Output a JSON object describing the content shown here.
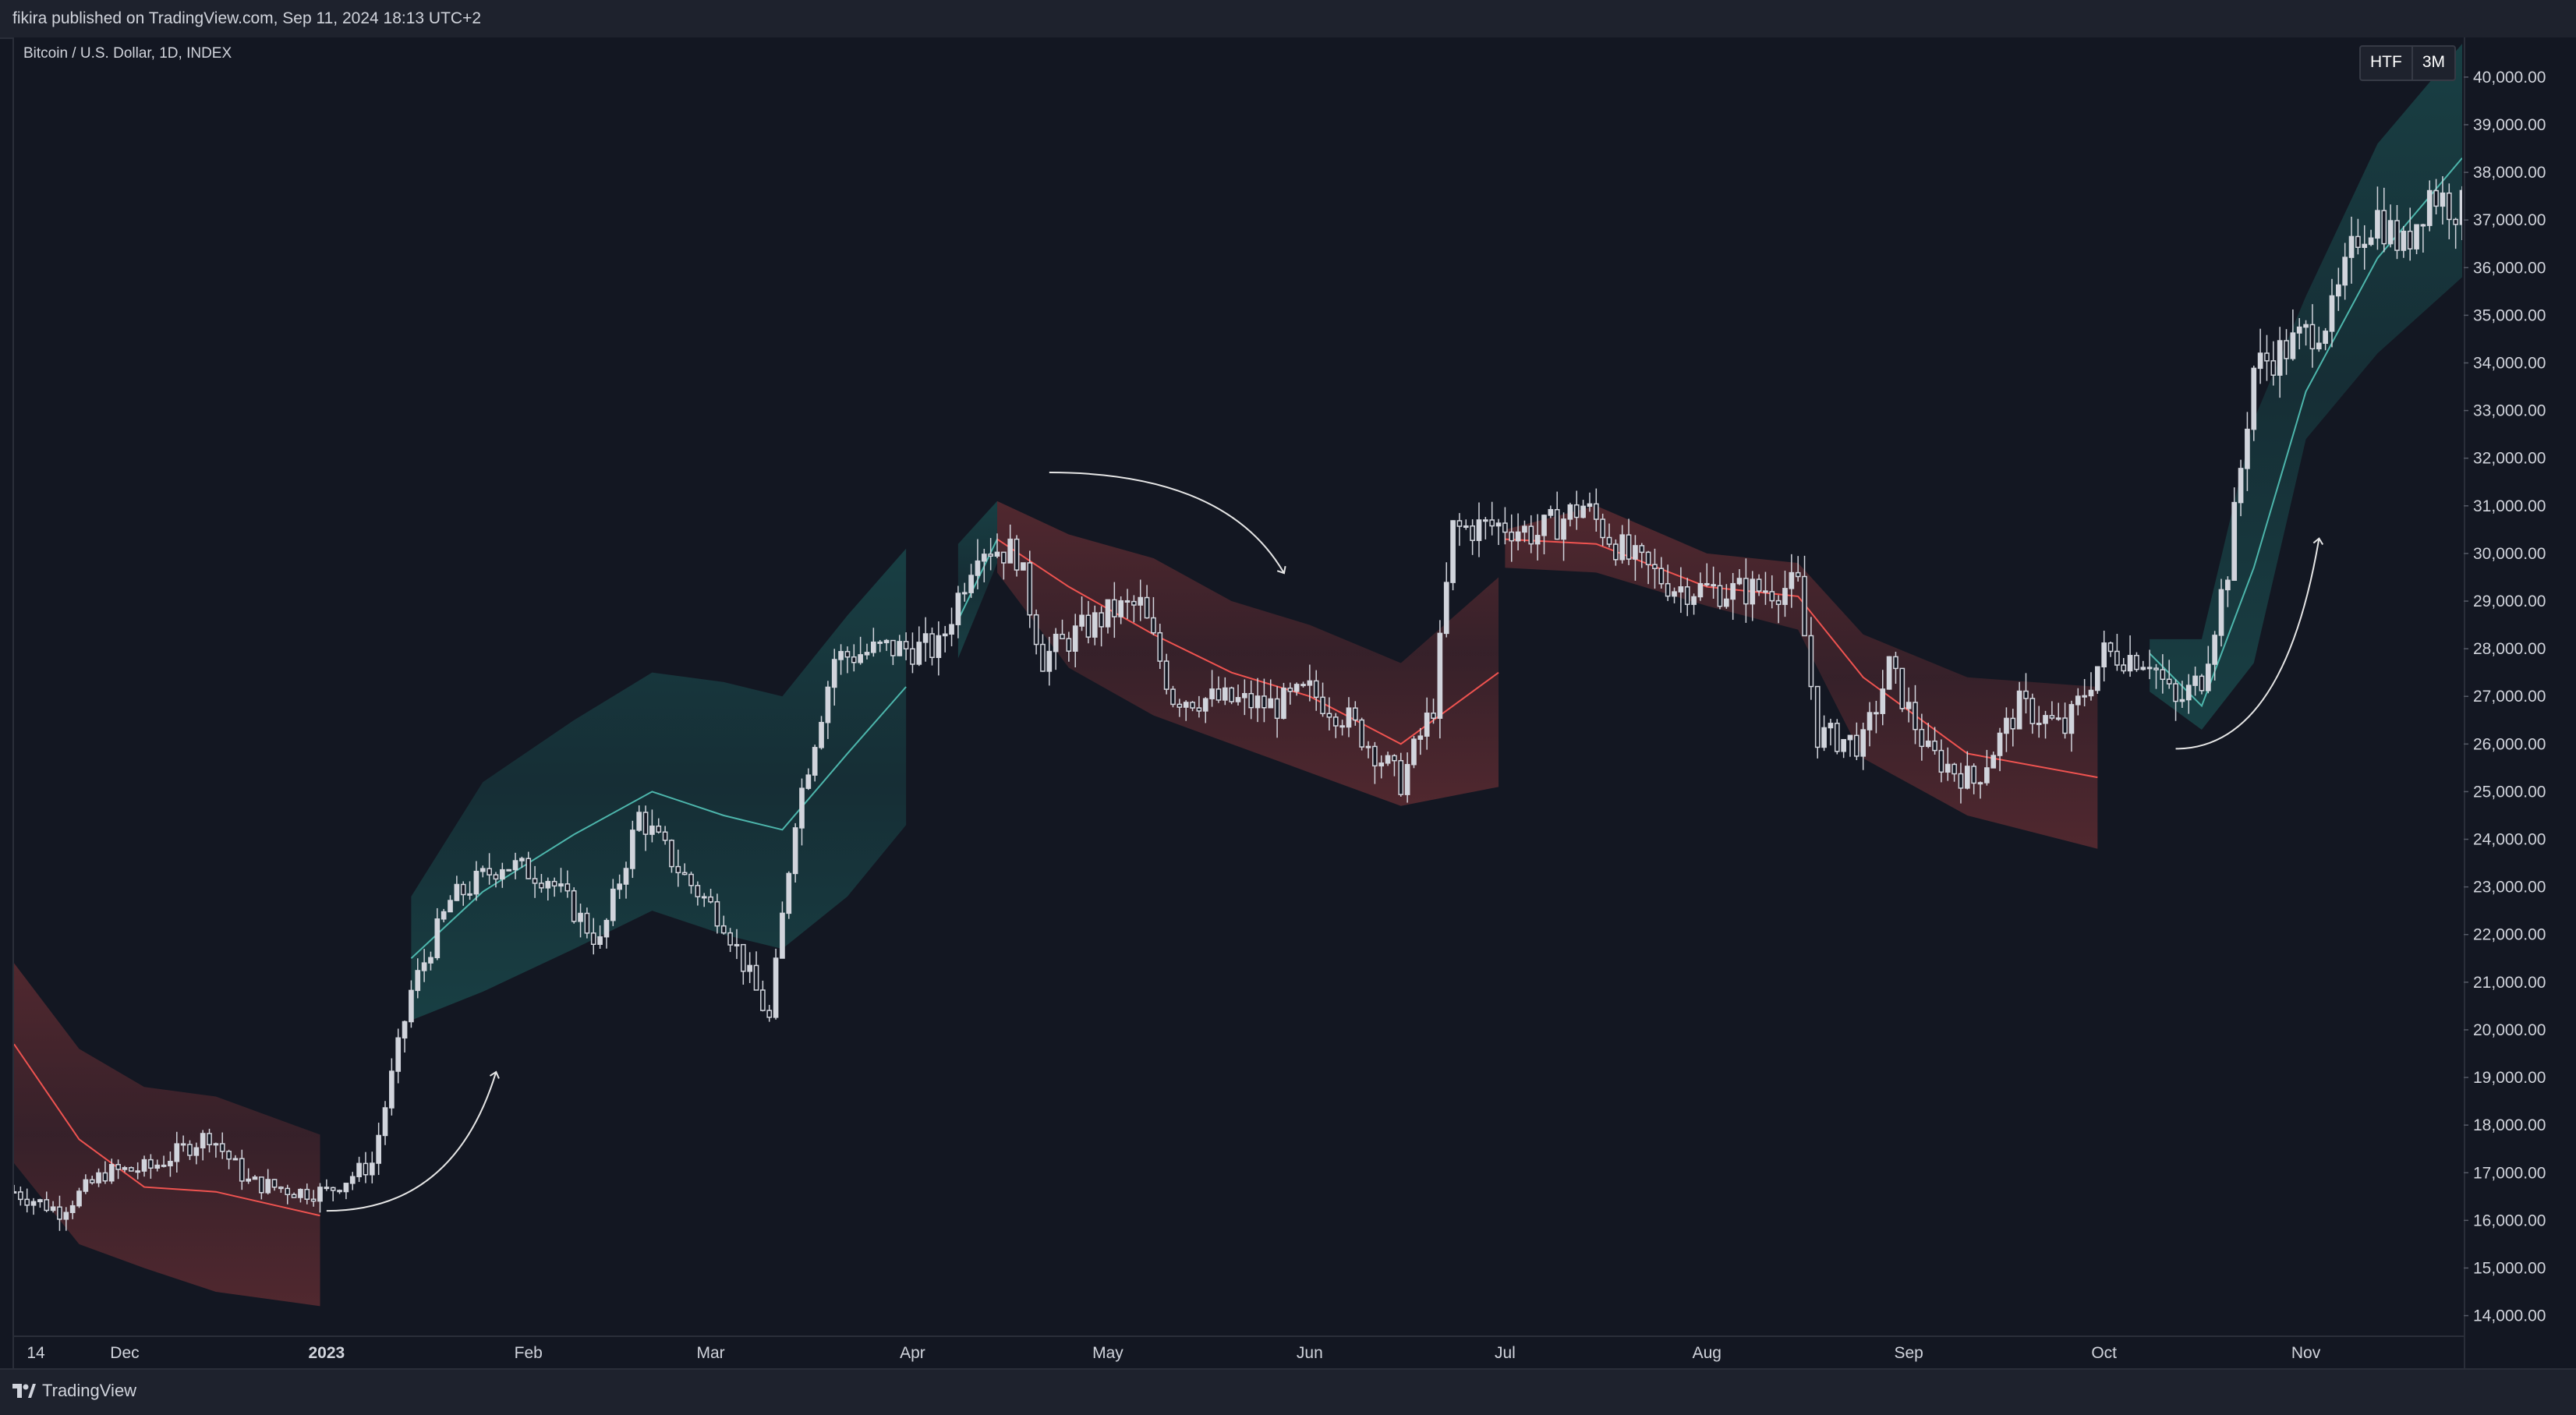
{
  "header": {
    "publisher_text": "fikira published on TradingView.com, Sep 11, 2024 18:13 UTC+2"
  },
  "footer": {
    "brand": "TradingView"
  },
  "symbol": {
    "label": "Bitcoin / U.S. Dollar, 1D, INDEX"
  },
  "timeframe_widget": {
    "label": "HTF",
    "value": "3M"
  },
  "colors": {
    "background": "#131722",
    "panel": "#1e222d",
    "grid": "#2a2e39",
    "axis_text": "#d1d4dc",
    "candle": "#d1d4dc",
    "bull_band": "#26a69a",
    "bear_band": "#ef5350",
    "bull_line": "#4db6ac",
    "bear_line": "#ef5350",
    "arrow": "#e6e6e6"
  },
  "chart_data": {
    "type": "candlestick",
    "title": "",
    "x_axis": {
      "tick_labels": [
        "14",
        "Dec",
        "2023",
        "Feb",
        "Mar",
        "Apr",
        "May",
        "Jun",
        "Jul",
        "Aug",
        "Sep",
        "Oct",
        "Nov"
      ],
      "tick_dates": [
        "2022-11-14",
        "2022-12-01",
        "2023-01-01",
        "2023-02-01",
        "2023-03-01",
        "2023-04-01",
        "2023-05-01",
        "2023-06-01",
        "2023-07-01",
        "2023-08-01",
        "2023-09-01",
        "2023-10-01",
        "2023-11-01"
      ],
      "range": [
        "2022-11-14",
        "2023-11-25"
      ]
    },
    "y_axis": {
      "range": [
        13600,
        40800
      ],
      "tick_labels": [
        "14,000.00",
        "15,000.00",
        "16,000.00",
        "17,000.00",
        "18,000.00",
        "19,000.00",
        "20,000.00",
        "21,000.00",
        "22,000.00",
        "23,000.00",
        "24,000.00",
        "25,000.00",
        "26,000.00",
        "27,000.00",
        "28,000.00",
        "29,000.00",
        "30,000.00",
        "31,000.00",
        "32,000.00",
        "33,000.00",
        "34,000.00",
        "35,000.00",
        "36,000.00",
        "37,000.00",
        "38,000.00",
        "39,000.00",
        "40,000.00"
      ],
      "tick_values": [
        14000,
        15000,
        16000,
        17000,
        18000,
        19000,
        20000,
        21000,
        22000,
        23000,
        24000,
        25000,
        26000,
        27000,
        28000,
        29000,
        30000,
        31000,
        32000,
        33000,
        34000,
        35000,
        36000,
        37000,
        38000,
        39000,
        40000
      ]
    },
    "price_path": [
      [
        "2022-11-14",
        16600
      ],
      [
        "2022-11-21",
        16200
      ],
      [
        "2022-11-28",
        17000
      ],
      [
        "2022-12-05",
        17100
      ],
      [
        "2022-12-14",
        17800
      ],
      [
        "2022-12-20",
        16800
      ],
      [
        "2022-12-28",
        16600
      ],
      [
        "2023-01-01",
        16600
      ],
      [
        "2023-01-08",
        17200
      ],
      [
        "2023-01-14",
        20800
      ],
      [
        "2023-01-20",
        22700
      ],
      [
        "2023-01-28",
        23500
      ],
      [
        "2023-02-04",
        23200
      ],
      [
        "2023-02-12",
        21800
      ],
      [
        "2023-02-18",
        24500
      ],
      [
        "2023-02-25",
        23200
      ],
      [
        "2023-03-03",
        22300
      ],
      [
        "2023-03-10",
        20200
      ],
      [
        "2023-03-14",
        24500
      ],
      [
        "2023-03-20",
        27800
      ],
      [
        "2023-03-28",
        28000
      ],
      [
        "2023-04-05",
        28000
      ],
      [
        "2023-04-11",
        30200
      ],
      [
        "2023-04-17",
        30000
      ],
      [
        "2023-04-21",
        27800
      ],
      [
        "2023-04-26",
        28300
      ],
      [
        "2023-05-02",
        28800
      ],
      [
        "2023-05-06",
        28900
      ],
      [
        "2023-05-11",
        27000
      ],
      [
        "2023-05-20",
        26900
      ],
      [
        "2023-05-27",
        26800
      ],
      [
        "2023-06-01",
        27100
      ],
      [
        "2023-06-07",
        26500
      ],
      [
        "2023-06-15",
        25200
      ],
      [
        "2023-06-20",
        26800
      ],
      [
        "2023-06-23",
        30500
      ],
      [
        "2023-07-01",
        30600
      ],
      [
        "2023-07-06",
        30400
      ],
      [
        "2023-07-13",
        31000
      ],
      [
        "2023-07-20",
        29900
      ],
      [
        "2023-07-27",
        29300
      ],
      [
        "2023-08-05",
        29200
      ],
      [
        "2023-08-15",
        29300
      ],
      [
        "2023-08-18",
        26200
      ],
      [
        "2023-08-25",
        26000
      ],
      [
        "2023-08-29",
        27600
      ],
      [
        "2023-09-04",
        25800
      ],
      [
        "2023-09-11",
        25200
      ],
      [
        "2023-09-18",
        26800
      ],
      [
        "2023-09-25",
        26300
      ],
      [
        "2023-10-01",
        27900
      ],
      [
        "2023-10-08",
        27800
      ],
      [
        "2023-10-12",
        26800
      ],
      [
        "2023-10-16",
        27400
      ],
      [
        "2023-10-20",
        29700
      ],
      [
        "2023-10-24",
        33900
      ],
      [
        "2023-10-29",
        34300
      ],
      [
        "2023-11-05",
        35000
      ],
      [
        "2023-11-09",
        36700
      ],
      [
        "2023-11-12",
        37100
      ],
      [
        "2023-11-16",
        36400
      ],
      [
        "2023-11-20",
        37600
      ],
      [
        "2023-11-25",
        37200
      ]
    ],
    "bands": [
      {
        "trend": "bear",
        "mid": [
          [
            "2022-11-14",
            19700
          ],
          [
            "2022-11-24",
            17700
          ],
          [
            "2022-12-04",
            16700
          ],
          [
            "2022-12-15",
            16600
          ],
          [
            "2022-12-31",
            16100
          ]
        ],
        "upper": [
          [
            "2022-11-14",
            21400
          ],
          [
            "2022-11-24",
            19600
          ],
          [
            "2022-12-04",
            18800
          ],
          [
            "2022-12-15",
            18600
          ],
          [
            "2022-12-31",
            17800
          ]
        ],
        "lower": [
          [
            "2022-11-14",
            17200
          ],
          [
            "2022-11-24",
            15500
          ],
          [
            "2022-12-04",
            15000
          ],
          [
            "2022-12-15",
            14500
          ],
          [
            "2022-12-31",
            14200
          ]
        ]
      },
      {
        "trend": "bull",
        "mid": [
          [
            "2023-01-14",
            21500
          ],
          [
            "2023-01-25",
            22900
          ],
          [
            "2023-02-08",
            24100
          ],
          [
            "2023-02-20",
            25000
          ],
          [
            "2023-03-03",
            24500
          ],
          [
            "2023-03-12",
            24200
          ],
          [
            "2023-03-22",
            25800
          ],
          [
            "2023-03-31",
            27200
          ]
        ],
        "upper": [
          [
            "2023-01-14",
            22800
          ],
          [
            "2023-01-25",
            25200
          ],
          [
            "2023-02-08",
            26500
          ],
          [
            "2023-02-20",
            27500
          ],
          [
            "2023-03-03",
            27300
          ],
          [
            "2023-03-12",
            27000
          ],
          [
            "2023-03-22",
            28700
          ],
          [
            "2023-03-31",
            30100
          ]
        ],
        "lower": [
          [
            "2023-01-14",
            20200
          ],
          [
            "2023-01-25",
            20800
          ],
          [
            "2023-02-08",
            21700
          ],
          [
            "2023-02-20",
            22500
          ],
          [
            "2023-03-03",
            22000
          ],
          [
            "2023-03-12",
            21700
          ],
          [
            "2023-03-22",
            22800
          ],
          [
            "2023-03-31",
            24300
          ]
        ]
      },
      {
        "trend": "bull",
        "mid": [
          [
            "2023-04-08",
            28600
          ],
          [
            "2023-04-14",
            30300
          ]
        ],
        "upper": [
          [
            "2023-04-08",
            30200
          ],
          [
            "2023-04-14",
            31100
          ]
        ],
        "lower": [
          [
            "2023-04-08",
            27800
          ],
          [
            "2023-04-14",
            29800
          ]
        ]
      },
      {
        "trend": "bear",
        "mid": [
          [
            "2023-04-14",
            30300
          ],
          [
            "2023-04-25",
            29300
          ],
          [
            "2023-05-08",
            28300
          ],
          [
            "2023-05-20",
            27500
          ],
          [
            "2023-06-01",
            27000
          ],
          [
            "2023-06-15",
            26000
          ],
          [
            "2023-06-30",
            27500
          ]
        ],
        "upper": [
          [
            "2023-04-14",
            31100
          ],
          [
            "2023-04-25",
            30400
          ],
          [
            "2023-05-08",
            29900
          ],
          [
            "2023-05-20",
            29000
          ],
          [
            "2023-06-01",
            28500
          ],
          [
            "2023-06-15",
            27700
          ],
          [
            "2023-06-30",
            29500
          ]
        ],
        "lower": [
          [
            "2023-04-14",
            29600
          ],
          [
            "2023-04-25",
            27600
          ],
          [
            "2023-05-08",
            26600
          ],
          [
            "2023-05-20",
            26000
          ],
          [
            "2023-06-01",
            25400
          ],
          [
            "2023-06-15",
            24700
          ],
          [
            "2023-06-30",
            25100
          ]
        ]
      },
      {
        "trend": "bear",
        "mid": [
          [
            "2023-07-01",
            30300
          ],
          [
            "2023-07-15",
            30200
          ],
          [
            "2023-08-01",
            29300
          ],
          [
            "2023-08-15",
            29100
          ],
          [
            "2023-08-25",
            27400
          ],
          [
            "2023-09-10",
            25800
          ],
          [
            "2023-09-30",
            25300
          ]
        ],
        "upper": [
          [
            "2023-07-01",
            30500
          ],
          [
            "2023-07-15",
            31000
          ],
          [
            "2023-08-01",
            30000
          ],
          [
            "2023-08-15",
            29800
          ],
          [
            "2023-08-25",
            28300
          ],
          [
            "2023-09-10",
            27400
          ],
          [
            "2023-09-30",
            27200
          ]
        ],
        "lower": [
          [
            "2023-07-01",
            29700
          ],
          [
            "2023-07-15",
            29600
          ],
          [
            "2023-08-01",
            28900
          ],
          [
            "2023-08-15",
            28400
          ],
          [
            "2023-08-25",
            25700
          ],
          [
            "2023-09-10",
            24500
          ],
          [
            "2023-09-30",
            23800
          ]
        ]
      },
      {
        "trend": "bull",
        "mid": [
          [
            "2023-10-08",
            27900
          ],
          [
            "2023-10-16",
            26800
          ],
          [
            "2023-10-24",
            29700
          ],
          [
            "2023-11-01",
            33400
          ],
          [
            "2023-11-12",
            36200
          ],
          [
            "2023-11-25",
            38300
          ]
        ],
        "upper": [
          [
            "2023-10-08",
            28200
          ],
          [
            "2023-10-16",
            28200
          ],
          [
            "2023-10-24",
            32800
          ],
          [
            "2023-11-01",
            35400
          ],
          [
            "2023-11-12",
            38600
          ],
          [
            "2023-11-25",
            40700
          ]
        ],
        "lower": [
          [
            "2023-10-08",
            27100
          ],
          [
            "2023-10-16",
            26300
          ],
          [
            "2023-10-24",
            27700
          ],
          [
            "2023-11-01",
            32400
          ],
          [
            "2023-11-12",
            34200
          ],
          [
            "2023-11-25",
            35800
          ]
        ]
      }
    ],
    "annotations": [
      {
        "type": "curved-arrow",
        "from": [
          "2023-01-01",
          16200
        ],
        "to": [
          "2023-01-27",
          19100
        ]
      },
      {
        "type": "curved-arrow",
        "from": [
          "2023-04-22",
          31700
        ],
        "to": [
          "2023-05-28",
          29600
        ]
      },
      {
        "type": "curved-arrow",
        "from": [
          "2023-10-12",
          25900
        ],
        "to": [
          "2023-11-03",
          30300
        ]
      }
    ],
    "grid": false,
    "legend": "none"
  }
}
